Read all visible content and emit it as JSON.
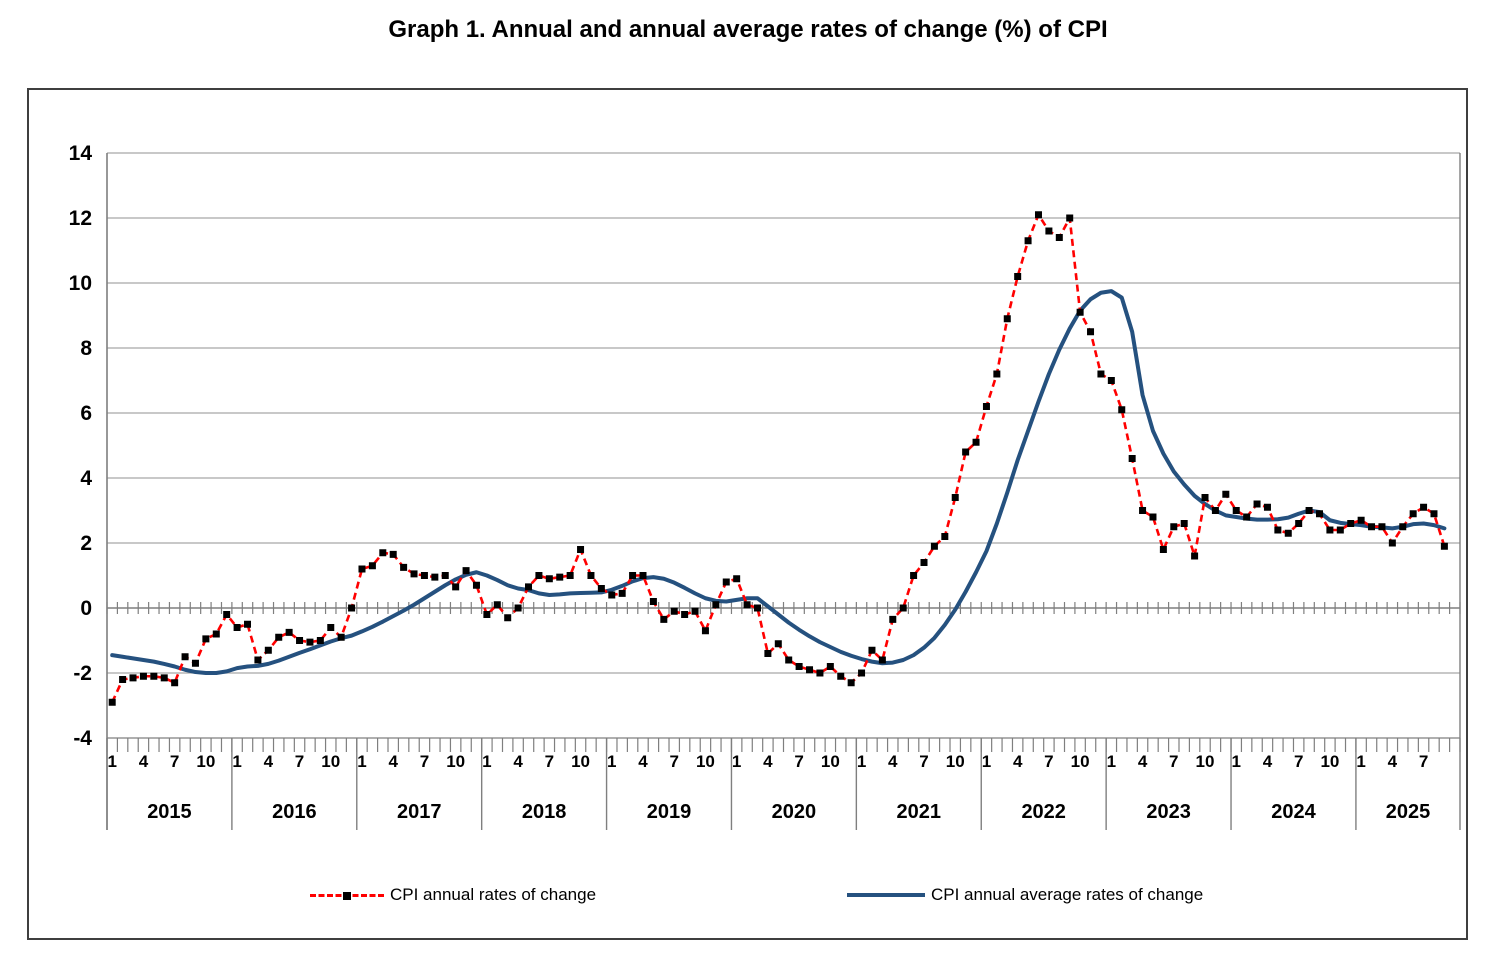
{
  "title": "Graph 1. Annual and annual average rates of change (%) of CPI",
  "legend": {
    "series1_label": "CPI annual rates of change",
    "series2_label": "CPI annual average rates of change"
  },
  "colors": {
    "series1": "#FF0000",
    "series1_marker": "#000000",
    "series2": "#25517F",
    "gridline": "#A6A6A6",
    "axis": "#7F7F7F",
    "frame": "#3F3F3F"
  },
  "chart_data": {
    "type": "line",
    "title": "Graph 1. Annual and annual average rates of change (%) of CPI",
    "xlabel": "",
    "ylabel": "",
    "x_unit": "month",
    "start": "2015-01",
    "end": "2025-09",
    "ylim": [
      -4,
      14
    ],
    "yticks": [
      14,
      12,
      10,
      8,
      6,
      4,
      2,
      0,
      -2,
      -4
    ],
    "grid": "horizontal",
    "legend_position": "bottom",
    "years": [
      {
        "label": "2015",
        "slots": 12,
        "month_labels": [
          "1",
          "4",
          "7",
          "10"
        ]
      },
      {
        "label": "2016",
        "slots": 12,
        "month_labels": [
          "1",
          "4",
          "7",
          "10"
        ]
      },
      {
        "label": "2017",
        "slots": 12,
        "month_labels": [
          "1",
          "4",
          "7",
          "10"
        ]
      },
      {
        "label": "2018",
        "slots": 12,
        "month_labels": [
          "1",
          "4",
          "7",
          "10"
        ]
      },
      {
        "label": "2019",
        "slots": 12,
        "month_labels": [
          "1",
          "4",
          "7",
          "10"
        ]
      },
      {
        "label": "2020",
        "slots": 12,
        "month_labels": [
          "1",
          "4",
          "7",
          "10"
        ]
      },
      {
        "label": "2021",
        "slots": 12,
        "month_labels": [
          "1",
          "4",
          "7",
          "10"
        ]
      },
      {
        "label": "2022",
        "slots": 12,
        "month_labels": [
          "1",
          "4",
          "7",
          "10"
        ]
      },
      {
        "label": "2023",
        "slots": 12,
        "month_labels": [
          "1",
          "4",
          "7",
          "10"
        ]
      },
      {
        "label": "2024",
        "slots": 12,
        "month_labels": [
          "1",
          "4",
          "7",
          "10"
        ]
      },
      {
        "label": "2025",
        "slots": 10,
        "month_labels": [
          "1",
          "4",
          "7"
        ]
      }
    ],
    "series": [
      {
        "name": "CPI annual rates of change",
        "color": "#FF0000",
        "style": "dashed",
        "marker": "black-square",
        "values": [
          -2.9,
          -2.2,
          -2.15,
          -2.1,
          -2.1,
          -2.15,
          -2.3,
          -1.5,
          -1.7,
          -0.95,
          -0.8,
          -0.2,
          -0.6,
          -0.5,
          -1.6,
          -1.3,
          -0.9,
          -0.75,
          -1.0,
          -1.05,
          -1.0,
          -0.6,
          -0.9,
          0.0,
          1.2,
          1.3,
          1.7,
          1.65,
          1.25,
          1.05,
          1.0,
          0.95,
          1.0,
          0.65,
          1.15,
          0.7,
          -0.2,
          0.1,
          -0.3,
          0.0,
          0.65,
          1.0,
          0.9,
          0.95,
          1.0,
          1.8,
          1.0,
          0.6,
          0.4,
          0.45,
          1.0,
          1.0,
          0.2,
          -0.35,
          -0.1,
          -0.2,
          -0.1,
          -0.7,
          0.1,
          0.8,
          0.9,
          0.1,
          0.0,
          -1.4,
          -1.1,
          -1.6,
          -1.8,
          -1.9,
          -2.0,
          -1.8,
          -2.1,
          -2.3,
          -2.0,
          -1.3,
          -1.6,
          -0.35,
          0.0,
          1.0,
          1.4,
          1.9,
          2.2,
          3.4,
          4.8,
          5.1,
          6.2,
          7.2,
          8.9,
          10.2,
          11.3,
          12.1,
          11.6,
          11.4,
          12.0,
          9.1,
          8.5,
          7.2,
          7.0,
          6.1,
          4.6,
          3.0,
          2.8,
          1.8,
          2.5,
          2.6,
          1.6,
          3.4,
          3.0,
          3.5,
          3.0,
          2.8,
          3.2,
          3.1,
          2.4,
          2.3,
          2.6,
          3.0,
          2.9,
          2.4,
          2.4,
          2.6,
          2.7,
          2.5,
          2.5,
          2.0,
          2.5,
          2.9,
          3.1,
          2.9,
          1.9
        ]
      },
      {
        "name": "CPI annual average rates of change",
        "color": "#25517F",
        "style": "solid",
        "marker": "none",
        "values": [
          -1.45,
          -1.5,
          -1.55,
          -1.6,
          -1.65,
          -1.72,
          -1.8,
          -1.9,
          -1.97,
          -2.0,
          -2.0,
          -1.95,
          -1.85,
          -1.8,
          -1.78,
          -1.72,
          -1.62,
          -1.5,
          -1.38,
          -1.27,
          -1.15,
          -1.03,
          -0.93,
          -0.85,
          -0.72,
          -0.58,
          -0.42,
          -0.25,
          -0.08,
          0.1,
          0.3,
          0.5,
          0.7,
          0.88,
          1.02,
          1.1,
          1.0,
          0.86,
          0.7,
          0.6,
          0.55,
          0.45,
          0.4,
          0.42,
          0.45,
          0.46,
          0.47,
          0.48,
          0.56,
          0.68,
          0.82,
          0.92,
          0.95,
          0.9,
          0.78,
          0.62,
          0.45,
          0.3,
          0.22,
          0.2,
          0.25,
          0.3,
          0.3,
          0.05,
          -0.2,
          -0.45,
          -0.67,
          -0.87,
          -1.05,
          -1.2,
          -1.35,
          -1.47,
          -1.57,
          -1.65,
          -1.7,
          -1.68,
          -1.6,
          -1.45,
          -1.22,
          -0.92,
          -0.52,
          -0.05,
          0.5,
          1.1,
          1.75,
          2.6,
          3.55,
          4.55,
          5.45,
          6.35,
          7.2,
          7.95,
          8.6,
          9.15,
          9.5,
          9.7,
          9.75,
          9.55,
          8.5,
          6.55,
          5.45,
          4.75,
          4.2,
          3.8,
          3.45,
          3.2,
          3.0,
          2.85,
          2.8,
          2.75,
          2.72,
          2.72,
          2.73,
          2.78,
          2.9,
          3.0,
          2.95,
          2.7,
          2.62,
          2.58,
          2.55,
          2.5,
          2.48,
          2.45,
          2.5,
          2.58,
          2.6,
          2.55,
          2.45
        ]
      }
    ]
  }
}
